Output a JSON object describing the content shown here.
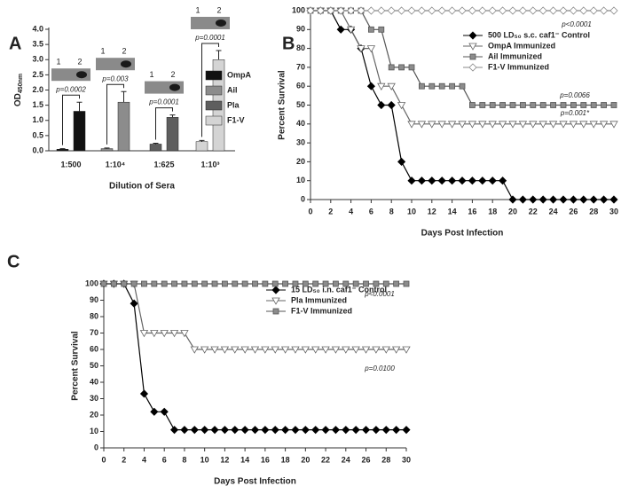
{
  "chart_data": [
    {
      "type": "bar",
      "panel": "A",
      "ylabel": {
        "text": "OD",
        "sub": "450nm"
      },
      "xlabel": "Dilution of Sera",
      "categories": [
        "1:500",
        "1:10⁴",
        "1:625",
        "1:10³"
      ],
      "colors": [
        "#111111",
        "#8c8c8c",
        "#5e5e5e",
        "#d4d4d4"
      ],
      "series": [
        {
          "values": [
            0.05,
            0.07,
            0.22,
            0.3
          ],
          "errors": [
            0.02,
            0.02,
            0.03,
            0.04
          ]
        },
        {
          "values": [
            1.3,
            1.6,
            1.1,
            3.0
          ],
          "errors": [
            0.3,
            0.35,
            0.08,
            0.3
          ]
        }
      ],
      "annotations": [
        "p=0.0002",
        "p=0.003",
        "p=0.0001",
        "p=0.0001"
      ],
      "lane_labels": [
        "1",
        "2"
      ],
      "legend": [
        {
          "name": "OmpA",
          "color": "#111111"
        },
        {
          "name": "Ail",
          "color": "#8c8c8c"
        },
        {
          "name": "Pla",
          "color": "#5e5e5e"
        },
        {
          "name": "F1-V",
          "color": "#d4d4d4"
        }
      ],
      "ylim": [
        0,
        4
      ],
      "yticks": [
        {
          "value": 0,
          "label": "0.0"
        },
        {
          "value": 0.5,
          "label": "0.5"
        },
        {
          "value": 1,
          "label": "1.0"
        },
        {
          "value": 1.5,
          "label": "1.5"
        },
        {
          "value": 2,
          "label": "2.0"
        },
        {
          "value": 2.5,
          "label": "2.5"
        },
        {
          "value": 3,
          "label": "3.0"
        },
        {
          "value": 3.5,
          "label": "3.5"
        },
        {
          "value": 4,
          "label": "4.0"
        }
      ]
    },
    {
      "type": "line",
      "panel": "B",
      "ylabel": "Percent Survival",
      "xlabel": "Days Post Infection",
      "x": [
        0,
        1,
        2,
        3,
        4,
        5,
        6,
        7,
        8,
        9,
        10,
        11,
        12,
        13,
        14,
        15,
        16,
        17,
        18,
        19,
        20,
        21,
        22,
        23,
        24,
        25,
        26,
        27,
        28,
        29,
        30
      ],
      "series": [
        {
          "name": "500 LD₅₀ s.c. caf1⁻ Control",
          "color": "#000000",
          "marker": "diamond",
          "fill": "#000000",
          "values": [
            100,
            100,
            100,
            90,
            90,
            80,
            60,
            50,
            50,
            20,
            10,
            10,
            10,
            10,
            10,
            10,
            10,
            10,
            10,
            10,
            0,
            0,
            0,
            0,
            0,
            0,
            0,
            0,
            0,
            0,
            0
          ]
        },
        {
          "name": "OmpA Immunized",
          "color": "#666666",
          "marker": "triangle",
          "fill": "#ffffff",
          "values": [
            100,
            100,
            100,
            100,
            90,
            80,
            80,
            60,
            60,
            50,
            40,
            40,
            40,
            40,
            40,
            40,
            40,
            40,
            40,
            40,
            40,
            40,
            40,
            40,
            40,
            40,
            40,
            40,
            40,
            40,
            40
          ]
        },
        {
          "name": "Ail Immunized",
          "color": "#555555",
          "marker": "square",
          "fill": "#8c8c8c",
          "values": [
            100,
            100,
            100,
            100,
            100,
            100,
            90,
            90,
            70,
            70,
            70,
            60,
            60,
            60,
            60,
            60,
            50,
            50,
            50,
            50,
            50,
            50,
            50,
            50,
            50,
            50,
            50,
            50,
            50,
            50,
            50
          ]
        },
        {
          "name": "F1-V Immunized",
          "color": "#888888",
          "marker": "diamond",
          "fill": "#ffffff",
          "values": [
            100,
            100,
            100,
            100,
            100,
            100,
            100,
            100,
            100,
            100,
            100,
            100,
            100,
            100,
            100,
            100,
            100,
            100,
            100,
            100,
            100,
            100,
            100,
            100,
            100,
            100,
            100,
            100,
            100,
            100,
            100
          ]
        }
      ],
      "annotations": [
        "p<0.0001",
        "p=0.0066",
        "p=0.001*"
      ],
      "xlim": [
        0,
        30
      ],
      "xticks": [
        0,
        2,
        4,
        6,
        8,
        10,
        12,
        14,
        16,
        18,
        20,
        22,
        24,
        26,
        28,
        30
      ],
      "ylim": [
        0,
        100
      ],
      "yticks": [
        0,
        10,
        20,
        30,
        40,
        50,
        60,
        70,
        80,
        90,
        100
      ]
    },
    {
      "type": "line",
      "panel": "C",
      "ylabel": "Percent Survival",
      "xlabel": "Days Post Infection",
      "x": [
        0,
        1,
        2,
        3,
        4,
        5,
        6,
        7,
        8,
        9,
        10,
        11,
        12,
        13,
        14,
        15,
        16,
        17,
        18,
        19,
        20,
        21,
        22,
        23,
        24,
        25,
        26,
        27,
        28,
        29,
        30
      ],
      "series": [
        {
          "name": "15 LD₅₀ i.n. caf1⁻ Control",
          "color": "#000000",
          "marker": "diamond",
          "fill": "#000000",
          "values": [
            100,
            100,
            100,
            88,
            33,
            22,
            22,
            11,
            11,
            11,
            11,
            11,
            11,
            11,
            11,
            11,
            11,
            11,
            11,
            11,
            11,
            11,
            11,
            11,
            11,
            11,
            11,
            11,
            11,
            11,
            11
          ]
        },
        {
          "name": "Pla Immunized",
          "color": "#666666",
          "marker": "triangle",
          "fill": "#ffffff",
          "values": [
            100,
            100,
            100,
            100,
            70,
            70,
            70,
            70,
            70,
            60,
            60,
            60,
            60,
            60,
            60,
            60,
            60,
            60,
            60,
            60,
            60,
            60,
            60,
            60,
            60,
            60,
            60,
            60,
            60,
            60,
            60
          ]
        },
        {
          "name": "F1-V Immunized",
          "color": "#555555",
          "marker": "square",
          "fill": "#8c8c8c",
          "values": [
            100,
            100,
            100,
            100,
            100,
            100,
            100,
            100,
            100,
            100,
            100,
            100,
            100,
            100,
            100,
            100,
            100,
            100,
            100,
            100,
            100,
            100,
            100,
            100,
            100,
            100,
            100,
            100,
            100,
            100,
            100
          ]
        }
      ],
      "annotations": [
        "p<0.0001",
        "p=0.0100"
      ],
      "xlim": [
        0,
        30
      ],
      "xticks": [
        0,
        2,
        4,
        6,
        8,
        10,
        12,
        14,
        16,
        18,
        20,
        22,
        24,
        26,
        28,
        30
      ],
      "ylim": [
        0,
        100
      ],
      "yticks": [
        0,
        10,
        20,
        30,
        40,
        50,
        60,
        70,
        80,
        90,
        100
      ]
    }
  ]
}
